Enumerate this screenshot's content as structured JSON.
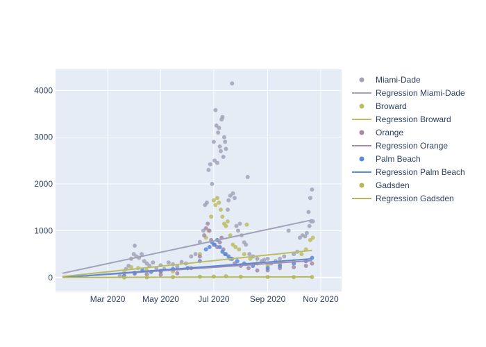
{
  "chart_data": {
    "type": "scatter",
    "title": "",
    "xlabel": "",
    "ylabel": "",
    "x_range": [
      "2020-01-01",
      "2020-11-25"
    ],
    "ylim": [
      -300,
      4450
    ],
    "x_ticks": [
      {
        "date": "2020-03-01",
        "label": "Mar 2020"
      },
      {
        "date": "2020-05-01",
        "label": "May 2020"
      },
      {
        "date": "2020-07-01",
        "label": "Jul 2020"
      },
      {
        "date": "2020-09-01",
        "label": "Sep 2020"
      },
      {
        "date": "2020-11-01",
        "label": "Nov 2020"
      }
    ],
    "y_ticks": [
      0,
      1000,
      2000,
      3000,
      4000
    ],
    "grid": true,
    "legend_position": "right",
    "series": [
      {
        "name": "Miami-Dade",
        "color": "#a3a3b8",
        "points": [
          {
            "x": "2020-03-15",
            "y": 30
          },
          {
            "x": "2020-03-22",
            "y": 180
          },
          {
            "x": "2020-03-25",
            "y": 250
          },
          {
            "x": "2020-03-28",
            "y": 400
          },
          {
            "x": "2020-03-31",
            "y": 500
          },
          {
            "x": "2020-04-01",
            "y": 680
          },
          {
            "x": "2020-04-03",
            "y": 450
          },
          {
            "x": "2020-04-06",
            "y": 420
          },
          {
            "x": "2020-04-09",
            "y": 500
          },
          {
            "x": "2020-04-12",
            "y": 350
          },
          {
            "x": "2020-04-15",
            "y": 300
          },
          {
            "x": "2020-04-18",
            "y": 250
          },
          {
            "x": "2020-04-22",
            "y": 320
          },
          {
            "x": "2020-04-26",
            "y": 200
          },
          {
            "x": "2020-05-01",
            "y": 260
          },
          {
            "x": "2020-05-05",
            "y": 180
          },
          {
            "x": "2020-05-10",
            "y": 320
          },
          {
            "x": "2020-05-15",
            "y": 280
          },
          {
            "x": "2020-05-20",
            "y": 230
          },
          {
            "x": "2020-05-25",
            "y": 330
          },
          {
            "x": "2020-05-30",
            "y": 300
          },
          {
            "x": "2020-06-05",
            "y": 450
          },
          {
            "x": "2020-06-10",
            "y": 500
          },
          {
            "x": "2020-06-15",
            "y": 760
          },
          {
            "x": "2020-06-19",
            "y": 1000
          },
          {
            "x": "2020-06-21",
            "y": 1550
          },
          {
            "x": "2020-06-23",
            "y": 1600
          },
          {
            "x": "2020-06-25",
            "y": 2300
          },
          {
            "x": "2020-06-27",
            "y": 2420
          },
          {
            "x": "2020-06-29",
            "y": 2000
          },
          {
            "x": "2020-07-01",
            "y": 2900
          },
          {
            "x": "2020-07-02",
            "y": 2500
          },
          {
            "x": "2020-07-03",
            "y": 3580
          },
          {
            "x": "2020-07-04",
            "y": 3250
          },
          {
            "x": "2020-07-05",
            "y": 2450
          },
          {
            "x": "2020-07-06",
            "y": 3100
          },
          {
            "x": "2020-07-07",
            "y": 3200
          },
          {
            "x": "2020-07-08",
            "y": 2800
          },
          {
            "x": "2020-07-09",
            "y": 2700
          },
          {
            "x": "2020-07-10",
            "y": 3380
          },
          {
            "x": "2020-07-11",
            "y": 3430
          },
          {
            "x": "2020-07-12",
            "y": 2580
          },
          {
            "x": "2020-07-13",
            "y": 3000
          },
          {
            "x": "2020-07-14",
            "y": 2900
          },
          {
            "x": "2020-07-15",
            "y": 2750
          },
          {
            "x": "2020-07-17",
            "y": 1450
          },
          {
            "x": "2020-07-18",
            "y": 1650
          },
          {
            "x": "2020-07-20",
            "y": 1750
          },
          {
            "x": "2020-07-22",
            "y": 4150
          },
          {
            "x": "2020-07-23",
            "y": 1800
          },
          {
            "x": "2020-07-25",
            "y": 1700
          },
          {
            "x": "2020-07-27",
            "y": 1100
          },
          {
            "x": "2020-07-29",
            "y": 1000
          },
          {
            "x": "2020-07-31",
            "y": 1150
          },
          {
            "x": "2020-08-02",
            "y": 900
          },
          {
            "x": "2020-08-05",
            "y": 750
          },
          {
            "x": "2020-08-07",
            "y": 700
          },
          {
            "x": "2020-08-09",
            "y": 2150
          },
          {
            "x": "2020-08-11",
            "y": 500
          },
          {
            "x": "2020-08-15",
            "y": 450
          },
          {
            "x": "2020-08-20",
            "y": 400
          },
          {
            "x": "2020-08-25",
            "y": 350
          },
          {
            "x": "2020-08-28",
            "y": 380
          },
          {
            "x": "2020-09-01",
            "y": 400
          },
          {
            "x": "2020-09-05",
            "y": 300
          },
          {
            "x": "2020-09-10",
            "y": 350
          },
          {
            "x": "2020-09-15",
            "y": 400
          },
          {
            "x": "2020-09-20",
            "y": 450
          },
          {
            "x": "2020-09-25",
            "y": 1000
          },
          {
            "x": "2020-10-01",
            "y": 500
          },
          {
            "x": "2020-10-05",
            "y": 550
          },
          {
            "x": "2020-10-08",
            "y": 850
          },
          {
            "x": "2020-10-11",
            "y": 900
          },
          {
            "x": "2020-10-14",
            "y": 880
          },
          {
            "x": "2020-10-16",
            "y": 950
          },
          {
            "x": "2020-10-18",
            "y": 1400
          },
          {
            "x": "2020-10-19",
            "y": 1100
          },
          {
            "x": "2020-10-20",
            "y": 1700
          },
          {
            "x": "2020-10-21",
            "y": 1200
          },
          {
            "x": "2020-10-22",
            "y": 1880
          },
          {
            "x": "2020-10-23",
            "y": 1200
          }
        ],
        "regression": [
          {
            "x": "2020-01-09",
            "y": 90
          },
          {
            "x": "2020-10-22",
            "y": 1230
          }
        ]
      },
      {
        "name": "Broward",
        "color": "#bcbd63",
        "points": [
          {
            "x": "2020-03-20",
            "y": 100
          },
          {
            "x": "2020-03-28",
            "y": 220
          },
          {
            "x": "2020-04-05",
            "y": 200
          },
          {
            "x": "2020-04-15",
            "y": 150
          },
          {
            "x": "2020-05-01",
            "y": 120
          },
          {
            "x": "2020-05-15",
            "y": 130
          },
          {
            "x": "2020-06-01",
            "y": 200
          },
          {
            "x": "2020-06-15",
            "y": 500
          },
          {
            "x": "2020-06-22",
            "y": 850
          },
          {
            "x": "2020-06-25",
            "y": 1000
          },
          {
            "x": "2020-06-28",
            "y": 1300
          },
          {
            "x": "2020-07-01",
            "y": 1650
          },
          {
            "x": "2020-07-03",
            "y": 1550
          },
          {
            "x": "2020-07-05",
            "y": 1700
          },
          {
            "x": "2020-07-07",
            "y": 1600
          },
          {
            "x": "2020-07-09",
            "y": 1450
          },
          {
            "x": "2020-07-11",
            "y": 1300
          },
          {
            "x": "2020-07-13",
            "y": 1150
          },
          {
            "x": "2020-07-15",
            "y": 1100
          },
          {
            "x": "2020-07-17",
            "y": 1200
          },
          {
            "x": "2020-07-20",
            "y": 900
          },
          {
            "x": "2020-07-23",
            "y": 700
          },
          {
            "x": "2020-07-26",
            "y": 650
          },
          {
            "x": "2020-07-30",
            "y": 600
          },
          {
            "x": "2020-08-05",
            "y": 500
          },
          {
            "x": "2020-08-08",
            "y": 1130
          },
          {
            "x": "2020-08-12",
            "y": 400
          },
          {
            "x": "2020-08-20",
            "y": 300
          },
          {
            "x": "2020-09-01",
            "y": 250
          },
          {
            "x": "2020-09-15",
            "y": 300
          },
          {
            "x": "2020-10-01",
            "y": 350
          },
          {
            "x": "2020-10-10",
            "y": 500
          },
          {
            "x": "2020-10-15",
            "y": 600
          },
          {
            "x": "2020-10-20",
            "y": 800
          },
          {
            "x": "2020-10-23",
            "y": 850
          }
        ],
        "regression": [
          {
            "x": "2020-01-09",
            "y": 20
          },
          {
            "x": "2020-10-22",
            "y": 580
          }
        ]
      },
      {
        "name": "Orange",
        "color": "#a689a6",
        "points": [
          {
            "x": "2020-03-20",
            "y": 30
          },
          {
            "x": "2020-04-01",
            "y": 80
          },
          {
            "x": "2020-04-15",
            "y": 70
          },
          {
            "x": "2020-05-01",
            "y": 60
          },
          {
            "x": "2020-05-20",
            "y": 90
          },
          {
            "x": "2020-06-05",
            "y": 200
          },
          {
            "x": "2020-06-15",
            "y": 450
          },
          {
            "x": "2020-06-20",
            "y": 900
          },
          {
            "x": "2020-06-22",
            "y": 1050
          },
          {
            "x": "2020-06-24",
            "y": 1150
          },
          {
            "x": "2020-06-26",
            "y": 1000
          },
          {
            "x": "2020-06-28",
            "y": 800
          },
          {
            "x": "2020-07-01",
            "y": 700
          },
          {
            "x": "2020-07-05",
            "y": 650
          },
          {
            "x": "2020-07-08",
            "y": 750
          },
          {
            "x": "2020-07-10",
            "y": 850
          },
          {
            "x": "2020-07-12",
            "y": 600
          },
          {
            "x": "2020-07-15",
            "y": 500
          },
          {
            "x": "2020-07-20",
            "y": 400
          },
          {
            "x": "2020-07-25",
            "y": 300
          },
          {
            "x": "2020-08-01",
            "y": 250
          },
          {
            "x": "2020-08-10",
            "y": 200
          },
          {
            "x": "2020-08-20",
            "y": 150
          },
          {
            "x": "2020-09-01",
            "y": 150
          },
          {
            "x": "2020-09-15",
            "y": 200
          },
          {
            "x": "2020-10-01",
            "y": 220
          },
          {
            "x": "2020-10-15",
            "y": 250
          },
          {
            "x": "2020-10-22",
            "y": 300
          }
        ],
        "regression": [
          {
            "x": "2020-01-09",
            "y": 0
          },
          {
            "x": "2020-10-22",
            "y": 360
          }
        ]
      },
      {
        "name": "Palm Beach",
        "color": "#5b8ad9",
        "points": [
          {
            "x": "2020-03-20",
            "y": 30
          },
          {
            "x": "2020-04-01",
            "y": 100
          },
          {
            "x": "2020-04-10",
            "y": 150
          },
          {
            "x": "2020-04-20",
            "y": 120
          },
          {
            "x": "2020-05-01",
            "y": 140
          },
          {
            "x": "2020-05-15",
            "y": 180
          },
          {
            "x": "2020-06-01",
            "y": 200
          },
          {
            "x": "2020-06-15",
            "y": 350
          },
          {
            "x": "2020-06-22",
            "y": 600
          },
          {
            "x": "2020-06-26",
            "y": 650
          },
          {
            "x": "2020-06-29",
            "y": 750
          },
          {
            "x": "2020-07-02",
            "y": 700
          },
          {
            "x": "2020-07-05",
            "y": 800
          },
          {
            "x": "2020-07-08",
            "y": 650
          },
          {
            "x": "2020-07-11",
            "y": 550
          },
          {
            "x": "2020-07-14",
            "y": 500
          },
          {
            "x": "2020-07-18",
            "y": 450
          },
          {
            "x": "2020-07-22",
            "y": 400
          },
          {
            "x": "2020-07-28",
            "y": 350
          },
          {
            "x": "2020-08-05",
            "y": 300
          },
          {
            "x": "2020-08-15",
            "y": 250
          },
          {
            "x": "2020-09-01",
            "y": 200
          },
          {
            "x": "2020-09-15",
            "y": 250
          },
          {
            "x": "2020-10-01",
            "y": 300
          },
          {
            "x": "2020-10-15",
            "y": 350
          },
          {
            "x": "2020-10-22",
            "y": 420
          }
        ],
        "regression": [
          {
            "x": "2020-01-09",
            "y": 0
          },
          {
            "x": "2020-10-22",
            "y": 400
          }
        ]
      },
      {
        "name": "Gadsden",
        "color": "#b5b85a",
        "points": [
          {
            "x": "2020-03-20",
            "y": 0
          },
          {
            "x": "2020-04-15",
            "y": 5
          },
          {
            "x": "2020-05-15",
            "y": 8
          },
          {
            "x": "2020-06-15",
            "y": 15
          },
          {
            "x": "2020-07-01",
            "y": 20
          },
          {
            "x": "2020-07-15",
            "y": 25
          },
          {
            "x": "2020-08-01",
            "y": 15
          },
          {
            "x": "2020-09-01",
            "y": 10
          },
          {
            "x": "2020-10-01",
            "y": 8
          },
          {
            "x": "2020-10-22",
            "y": 10
          }
        ],
        "regression": [
          {
            "x": "2020-01-09",
            "y": 0
          },
          {
            "x": "2020-10-22",
            "y": 12
          }
        ]
      }
    ],
    "legend": [
      {
        "label": "Miami-Dade",
        "kind": "marker",
        "color": "#a3a3b8"
      },
      {
        "label": "Regression Miami-Dade",
        "kind": "line",
        "color": "#a3a3b8"
      },
      {
        "label": "Broward",
        "kind": "marker",
        "color": "#bcbd63"
      },
      {
        "label": "Regression Broward",
        "kind": "line",
        "color": "#bcbd63"
      },
      {
        "label": "Orange",
        "kind": "marker",
        "color": "#a689a6"
      },
      {
        "label": "Regression Orange",
        "kind": "line",
        "color": "#a689a6"
      },
      {
        "label": "Palm Beach",
        "kind": "marker",
        "color": "#5b8ad9"
      },
      {
        "label": "Regression Palm Beach",
        "kind": "line",
        "color": "#5b8ad9"
      },
      {
        "label": "Gadsden",
        "kind": "marker",
        "color": "#b5b85a"
      },
      {
        "label": "Regression Gadsden",
        "kind": "line",
        "color": "#b5b85a"
      }
    ]
  }
}
